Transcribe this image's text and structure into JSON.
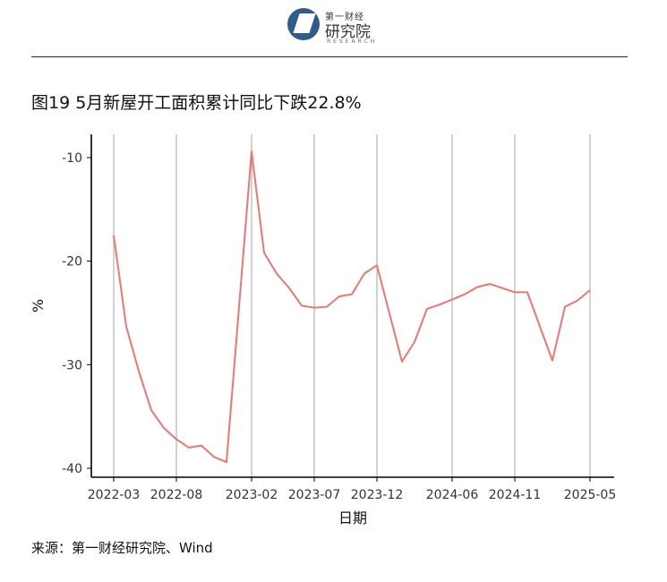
{
  "header": {
    "logo_line1": "第一财经",
    "logo_line2": "研究院",
    "logo_line3": "RESEARCH"
  },
  "title": "图19 5月新屋开工面积累计同比下跌22.8%",
  "source": "来源：第一财经研究院、Wind",
  "colors": {
    "line": "#f07470",
    "grid": "#b3b3b3",
    "axis": "#000000"
  },
  "chart_data": {
    "type": "line",
    "xlabel": "日期",
    "ylabel": "%",
    "ylim": [
      -41,
      -8
    ],
    "yticks": [
      -10,
      -20,
      -30,
      -40
    ],
    "xticks": [
      "2022-03",
      "2022-08",
      "2023-02",
      "2023-07",
      "2023-12",
      "2024-06",
      "2024-11",
      "2025-05"
    ],
    "grid": "vertical",
    "series": [
      {
        "x": [
          "2022-03",
          "2022-04",
          "2022-05",
          "2022-06",
          "2022-07",
          "2022-08",
          "2022-09",
          "2022-10",
          "2022-11",
          "2022-12",
          "2023-02",
          "2023-03",
          "2023-04",
          "2023-05",
          "2023-06",
          "2023-07",
          "2023-08",
          "2023-09",
          "2023-10",
          "2023-11",
          "2023-12",
          "2024-02",
          "2024-03",
          "2024-04",
          "2024-05",
          "2024-06",
          "2024-07",
          "2024-08",
          "2024-09",
          "2024-10",
          "2024-11",
          "2024-12",
          "2025-02",
          "2025-03",
          "2025-04",
          "2025-05"
        ],
        "y": [
          -17.5,
          -26.3,
          -30.6,
          -34.4,
          -36.1,
          -37.2,
          -38.0,
          -37.8,
          -38.9,
          -39.4,
          -9.4,
          -19.2,
          -21.2,
          -22.6,
          -24.3,
          -24.5,
          -24.4,
          -23.4,
          -23.2,
          -21.2,
          -20.4,
          -29.7,
          -27.8,
          -24.6,
          -24.2,
          -23.7,
          -23.2,
          -22.5,
          -22.2,
          -22.6,
          -23.0,
          -23.0,
          -29.6,
          -24.4,
          -23.8,
          -22.8
        ]
      }
    ]
  }
}
